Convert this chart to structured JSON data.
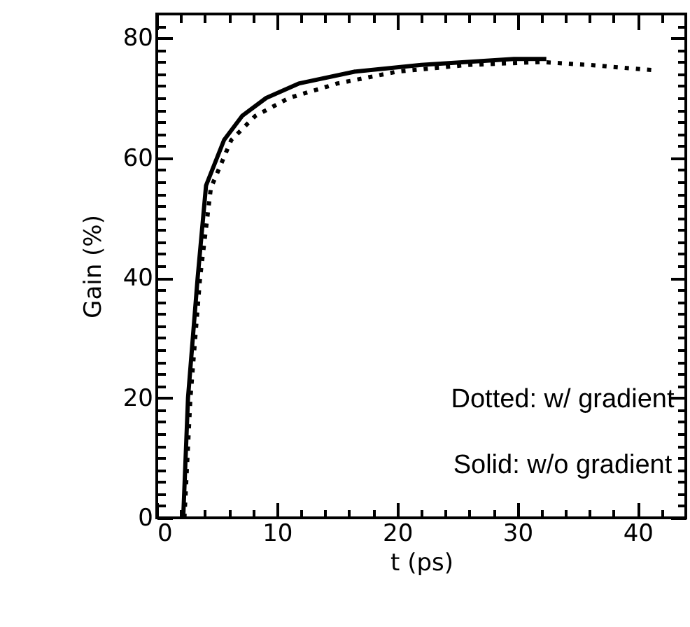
{
  "chart_data": {
    "type": "line",
    "xlabel": "t (ps)",
    "ylabel": "Gain (%)",
    "xlim": [
      0,
      44
    ],
    "ylim": [
      0,
      84
    ],
    "xticks": [
      0,
      {
        "value": 2,
        "label": null
      },
      {
        "value": 4,
        "label": null
      },
      {
        "value": 6,
        "label": null
      },
      {
        "value": 8,
        "label": null
      },
      10,
      {
        "value": 12,
        "label": null
      },
      {
        "value": 14,
        "label": null
      },
      {
        "value": 16,
        "label": null
      },
      {
        "value": 18,
        "label": null
      },
      20,
      {
        "value": 22,
        "label": null
      },
      {
        "value": 24,
        "label": null
      },
      {
        "value": 26,
        "label": null
      },
      {
        "value": 28,
        "label": null
      },
      30,
      {
        "value": 32,
        "label": null
      },
      {
        "value": 34,
        "label": null
      },
      {
        "value": 36,
        "label": null
      },
      {
        "value": 38,
        "label": null
      },
      40,
      {
        "value": 42,
        "label": null
      }
    ],
    "yticks": [
      0,
      {
        "value": 2,
        "label": null
      },
      {
        "value": 4,
        "label": null
      },
      {
        "value": 6,
        "label": null
      },
      {
        "value": 8,
        "label": null
      },
      {
        "value": 10,
        "label": null
      },
      {
        "value": 12,
        "label": null
      },
      {
        "value": 14,
        "label": null
      },
      {
        "value": 16,
        "label": null
      },
      {
        "value": 18,
        "label": null
      },
      20,
      {
        "value": 22,
        "label": null
      },
      {
        "value": 24,
        "label": null
      },
      {
        "value": 26,
        "label": null
      },
      {
        "value": 28,
        "label": null
      },
      {
        "value": 30,
        "label": null
      },
      {
        "value": 32,
        "label": null
      },
      {
        "value": 34,
        "label": null
      },
      {
        "value": 36,
        "label": null
      },
      {
        "value": 38,
        "label": null
      },
      40,
      {
        "value": 42,
        "label": null
      },
      {
        "value": 44,
        "label": null
      },
      {
        "value": 46,
        "label": null
      },
      {
        "value": 48,
        "label": null
      },
      {
        "value": 50,
        "label": null
      },
      {
        "value": 52,
        "label": null
      },
      {
        "value": 54,
        "label": null
      },
      {
        "value": 56,
        "label": null
      },
      {
        "value": 58,
        "label": null
      },
      60,
      {
        "value": 62,
        "label": null
      },
      {
        "value": 64,
        "label": null
      },
      {
        "value": 66,
        "label": null
      },
      {
        "value": 68,
        "label": null
      },
      {
        "value": 70,
        "label": null
      },
      {
        "value": 72,
        "label": null
      },
      {
        "value": 74,
        "label": null
      },
      {
        "value": 76,
        "label": null
      },
      {
        "value": 78,
        "label": null
      },
      80,
      {
        "value": 82,
        "label": null
      }
    ],
    "series": [
      {
        "color": "#000000",
        "line_style": "solid",
        "x": [
          2.2,
          2.6,
          3.4,
          4.1,
          5.6,
          7.1,
          9.1,
          11.8,
          16.5,
          22,
          29.7,
          32.4
        ],
        "values": [
          0,
          20,
          40,
          55.4,
          63,
          67,
          70,
          72.4,
          74.4,
          75.5,
          76.5,
          76.5
        ]
      },
      {
        "color": "#000000",
        "line_style": "dotted",
        "x": [
          2.3,
          2.8,
          3.6,
          4.5,
          6.2,
          8.2,
          11,
          15,
          20,
          25.8,
          32,
          36,
          41.5
        ],
        "values": [
          0,
          20,
          40,
          55,
          63,
          67,
          70,
          72.4,
          74.4,
          75.5,
          76,
          75.5,
          74.6
        ]
      }
    ],
    "annotations": [
      "Dotted: w/ gradient",
      "Solid: w/o gradient"
    ]
  }
}
